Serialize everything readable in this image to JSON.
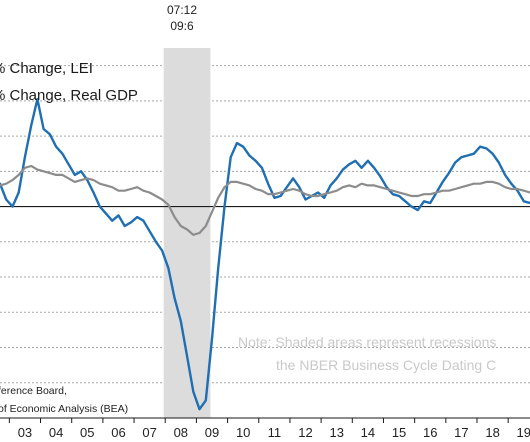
{
  "chart_data": {
    "type": "line",
    "title": "",
    "xlabel": "",
    "ylabel": "",
    "x_range": [
      2002.7,
      2019.7
    ],
    "y_range": [
      -12,
      9
    ],
    "x_ticks": [
      {
        "label": "03",
        "year": 2003
      },
      {
        "label": "04",
        "year": 2004
      },
      {
        "label": "05",
        "year": 2005
      },
      {
        "label": "06",
        "year": 2006
      },
      {
        "label": "07",
        "year": 2007
      },
      {
        "label": "08",
        "year": 2008
      },
      {
        "label": "09",
        "year": 2009
      },
      {
        "label": "10",
        "year": 2010
      },
      {
        "label": "11",
        "year": 2011
      },
      {
        "label": "12",
        "year": 2012
      },
      {
        "label": "13",
        "year": 2013
      },
      {
        "label": "14",
        "year": 2014
      },
      {
        "label": "15",
        "year": 2015
      },
      {
        "label": "16",
        "year": 2016
      },
      {
        "label": "17",
        "year": 2017
      },
      {
        "label": "18",
        "year": 2018
      },
      {
        "label": "19",
        "year": 2019
      }
    ],
    "gridlines_y": [
      8,
      6,
      4,
      2,
      -2,
      -4,
      -6,
      -8,
      -10
    ],
    "grid": true,
    "recession": {
      "start": 2007.95,
      "end": 2009.45,
      "label_lines": [
        "07:12",
        "09:6"
      ]
    },
    "legend": {
      "placement": "top-left",
      "entries": [
        "% Change, LEI",
        "% Change, Real GDP"
      ]
    },
    "note_lines": [
      "Note: Shaded areas represent recessions",
      "the NBER Business Cycle Dating C"
    ],
    "source_lines": [
      "ference Board,",
      "of Economic Analysis (BEA)"
    ],
    "series": [
      {
        "color": "#1f6fb2",
        "points": [
          [
            2002.7,
            1.3
          ],
          [
            2002.9,
            0.4
          ],
          [
            2003.1,
            0.0
          ],
          [
            2003.3,
            0.8
          ],
          [
            2003.5,
            2.8
          ],
          [
            2003.7,
            4.6
          ],
          [
            2003.9,
            6.1
          ],
          [
            2004.1,
            4.4
          ],
          [
            2004.3,
            4.1
          ],
          [
            2004.5,
            3.4
          ],
          [
            2004.7,
            3.0
          ],
          [
            2004.9,
            2.4
          ],
          [
            2005.1,
            1.8
          ],
          [
            2005.3,
            2.0
          ],
          [
            2005.5,
            1.5
          ],
          [
            2005.7,
            0.8
          ],
          [
            2005.9,
            0.0
          ],
          [
            2006.1,
            -0.4
          ],
          [
            2006.3,
            -0.8
          ],
          [
            2006.5,
            -0.5
          ],
          [
            2006.7,
            -1.1
          ],
          [
            2006.9,
            -0.9
          ],
          [
            2007.1,
            -0.6
          ],
          [
            2007.3,
            -0.8
          ],
          [
            2007.5,
            -1.4
          ],
          [
            2007.7,
            -2.0
          ],
          [
            2007.9,
            -2.5
          ],
          [
            2008.1,
            -3.5
          ],
          [
            2008.3,
            -5.2
          ],
          [
            2008.5,
            -6.5
          ],
          [
            2008.7,
            -8.5
          ],
          [
            2008.9,
            -10.5
          ],
          [
            2009.1,
            -11.5
          ],
          [
            2009.3,
            -11.0
          ],
          [
            2009.5,
            -7.5
          ],
          [
            2009.7,
            -3.5
          ],
          [
            2009.9,
            0.0
          ],
          [
            2010.1,
            2.8
          ],
          [
            2010.3,
            3.6
          ],
          [
            2010.5,
            3.4
          ],
          [
            2010.7,
            2.9
          ],
          [
            2010.9,
            2.6
          ],
          [
            2011.1,
            2.2
          ],
          [
            2011.3,
            1.3
          ],
          [
            2011.5,
            0.5
          ],
          [
            2011.7,
            0.6
          ],
          [
            2011.9,
            1.1
          ],
          [
            2012.1,
            1.6
          ],
          [
            2012.3,
            1.1
          ],
          [
            2012.5,
            0.4
          ],
          [
            2012.7,
            0.6
          ],
          [
            2012.9,
            0.8
          ],
          [
            2013.1,
            0.5
          ],
          [
            2013.3,
            1.2
          ],
          [
            2013.5,
            1.6
          ],
          [
            2013.7,
            2.1
          ],
          [
            2013.9,
            2.4
          ],
          [
            2014.1,
            2.6
          ],
          [
            2014.3,
            2.2
          ],
          [
            2014.5,
            2.6
          ],
          [
            2014.7,
            2.2
          ],
          [
            2014.9,
            1.7
          ],
          [
            2015.1,
            1.1
          ],
          [
            2015.3,
            0.7
          ],
          [
            2015.5,
            0.6
          ],
          [
            2015.7,
            0.3
          ],
          [
            2015.9,
            0.0
          ],
          [
            2016.1,
            -0.2
          ],
          [
            2016.3,
            0.3
          ],
          [
            2016.5,
            0.2
          ],
          [
            2016.7,
            0.8
          ],
          [
            2016.9,
            1.4
          ],
          [
            2017.1,
            1.9
          ],
          [
            2017.3,
            2.5
          ],
          [
            2017.5,
            2.8
          ],
          [
            2017.7,
            2.9
          ],
          [
            2017.9,
            3.0
          ],
          [
            2018.1,
            3.4
          ],
          [
            2018.3,
            3.3
          ],
          [
            2018.5,
            3.0
          ],
          [
            2018.7,
            2.5
          ],
          [
            2018.9,
            1.8
          ],
          [
            2019.1,
            1.3
          ],
          [
            2019.3,
            0.9
          ],
          [
            2019.5,
            0.3
          ],
          [
            2019.7,
            0.2
          ]
        ]
      },
      {
        "color": "#8c8c8c",
        "points": [
          [
            2002.7,
            1.2
          ],
          [
            2002.9,
            1.3
          ],
          [
            2003.1,
            1.5
          ],
          [
            2003.3,
            1.8
          ],
          [
            2003.5,
            2.2
          ],
          [
            2003.7,
            2.3
          ],
          [
            2003.9,
            2.1
          ],
          [
            2004.1,
            2.0
          ],
          [
            2004.3,
            1.9
          ],
          [
            2004.5,
            1.8
          ],
          [
            2004.7,
            1.8
          ],
          [
            2004.9,
            1.6
          ],
          [
            2005.1,
            1.4
          ],
          [
            2005.3,
            1.5
          ],
          [
            2005.5,
            1.6
          ],
          [
            2005.7,
            1.5
          ],
          [
            2005.9,
            1.3
          ],
          [
            2006.1,
            1.2
          ],
          [
            2006.3,
            1.1
          ],
          [
            2006.5,
            0.9
          ],
          [
            2006.7,
            0.9
          ],
          [
            2006.9,
            1.0
          ],
          [
            2007.1,
            1.1
          ],
          [
            2007.3,
            0.9
          ],
          [
            2007.5,
            0.8
          ],
          [
            2007.7,
            0.6
          ],
          [
            2007.9,
            0.4
          ],
          [
            2008.1,
            0.1
          ],
          [
            2008.3,
            -0.6
          ],
          [
            2008.5,
            -1.1
          ],
          [
            2008.7,
            -1.3
          ],
          [
            2008.9,
            -1.6
          ],
          [
            2009.1,
            -1.5
          ],
          [
            2009.3,
            -1.1
          ],
          [
            2009.5,
            -0.3
          ],
          [
            2009.7,
            0.5
          ],
          [
            2009.9,
            1.1
          ],
          [
            2010.1,
            1.4
          ],
          [
            2010.3,
            1.4
          ],
          [
            2010.5,
            1.3
          ],
          [
            2010.7,
            1.2
          ],
          [
            2010.9,
            1.0
          ],
          [
            2011.1,
            0.9
          ],
          [
            2011.3,
            0.7
          ],
          [
            2011.5,
            0.7
          ],
          [
            2011.7,
            0.8
          ],
          [
            2011.9,
            0.9
          ],
          [
            2012.1,
            1.0
          ],
          [
            2012.3,
            0.9
          ],
          [
            2012.5,
            0.7
          ],
          [
            2012.7,
            0.6
          ],
          [
            2012.9,
            0.6
          ],
          [
            2013.1,
            0.7
          ],
          [
            2013.3,
            0.8
          ],
          [
            2013.5,
            0.9
          ],
          [
            2013.7,
            1.1
          ],
          [
            2013.9,
            1.2
          ],
          [
            2014.1,
            1.1
          ],
          [
            2014.3,
            1.3
          ],
          [
            2014.5,
            1.2
          ],
          [
            2014.7,
            1.2
          ],
          [
            2014.9,
            1.1
          ],
          [
            2015.1,
            1.0
          ],
          [
            2015.3,
            0.9
          ],
          [
            2015.5,
            0.8
          ],
          [
            2015.7,
            0.7
          ],
          [
            2015.9,
            0.6
          ],
          [
            2016.1,
            0.6
          ],
          [
            2016.3,
            0.7
          ],
          [
            2016.5,
            0.7
          ],
          [
            2016.7,
            0.8
          ],
          [
            2016.9,
            0.9
          ],
          [
            2017.1,
            0.9
          ],
          [
            2017.3,
            1.0
          ],
          [
            2017.5,
            1.1
          ],
          [
            2017.7,
            1.2
          ],
          [
            2017.9,
            1.3
          ],
          [
            2018.1,
            1.3
          ],
          [
            2018.3,
            1.4
          ],
          [
            2018.5,
            1.4
          ],
          [
            2018.7,
            1.3
          ],
          [
            2018.9,
            1.1
          ],
          [
            2019.1,
            1.0
          ],
          [
            2019.3,
            1.0
          ],
          [
            2019.5,
            0.9
          ],
          [
            2019.7,
            0.8
          ]
        ]
      }
    ]
  }
}
